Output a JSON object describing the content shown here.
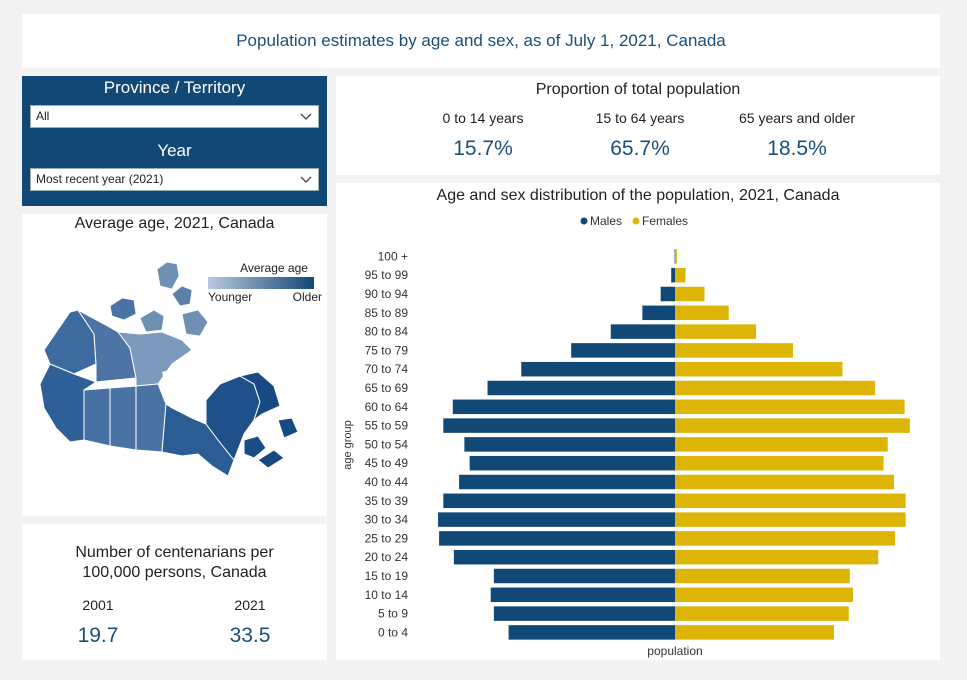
{
  "header": {
    "title": "Population estimates by age and sex, as of July 1, 2021, Canada"
  },
  "filters": {
    "province_label": "Province / Territory",
    "province_value": "All",
    "year_label": "Year",
    "year_value": "Most recent year (2021)"
  },
  "map": {
    "title": "Average age, 2021, Canada",
    "legend_title": "Average age",
    "legend_low": "Younger",
    "legend_high": "Older",
    "color_low": "#b9c9de",
    "color_high": "#124876"
  },
  "centenarians": {
    "title_line1": "Number of centenarians per",
    "title_line2": "100,000 persons, Canada",
    "year1": "2001",
    "value1": "19.7",
    "year2": "2021",
    "value2": "33.5"
  },
  "proportion": {
    "title": "Proportion of total population",
    "groups": [
      {
        "label": "0 to 14 years",
        "value": "15.7%"
      },
      {
        "label": "15 to 64 years",
        "value": "65.7%"
      },
      {
        "label": "65 years and older",
        "value": "18.5%"
      }
    ]
  },
  "chart_data": {
    "type": "bar",
    "orientation": "horizontal-pyramid",
    "title": "Age and sex distribution of the population, 2021, Canada",
    "xlabel": "population",
    "ylabel": "age group",
    "legend_position": "top-center",
    "categories": [
      "100 +",
      "95 to 99",
      "90 to 94",
      "85 to 89",
      "80 to 84",
      "75 to 79",
      "70 to 74",
      "65 to 69",
      "60 to 64",
      "55 to 59",
      "50 to 54",
      "45 to 49",
      "40 to 44",
      "35 to 39",
      "30 to 34",
      "25 to 29",
      "20 to 24",
      "15 to 19",
      "10 to 14",
      "5 to 9",
      "0 to 4"
    ],
    "series": [
      {
        "name": "Males",
        "color": "#124876",
        "values": [
          2000,
          18000,
          68000,
          155000,
          305000,
          493000,
          730000,
          890000,
          1055000,
          1100000,
          1000000,
          975000,
          1025000,
          1100000,
          1125000,
          1120000,
          1050000,
          860000,
          875000,
          860000,
          790000
        ]
      },
      {
        "name": "Females",
        "color": "#dcb507",
        "values": [
          9000,
          50000,
          140000,
          255000,
          385000,
          560000,
          795000,
          950000,
          1090000,
          1115000,
          1010000,
          990000,
          1040000,
          1095000,
          1095000,
          1045000,
          965000,
          830000,
          845000,
          825000,
          755000
        ]
      }
    ]
  }
}
